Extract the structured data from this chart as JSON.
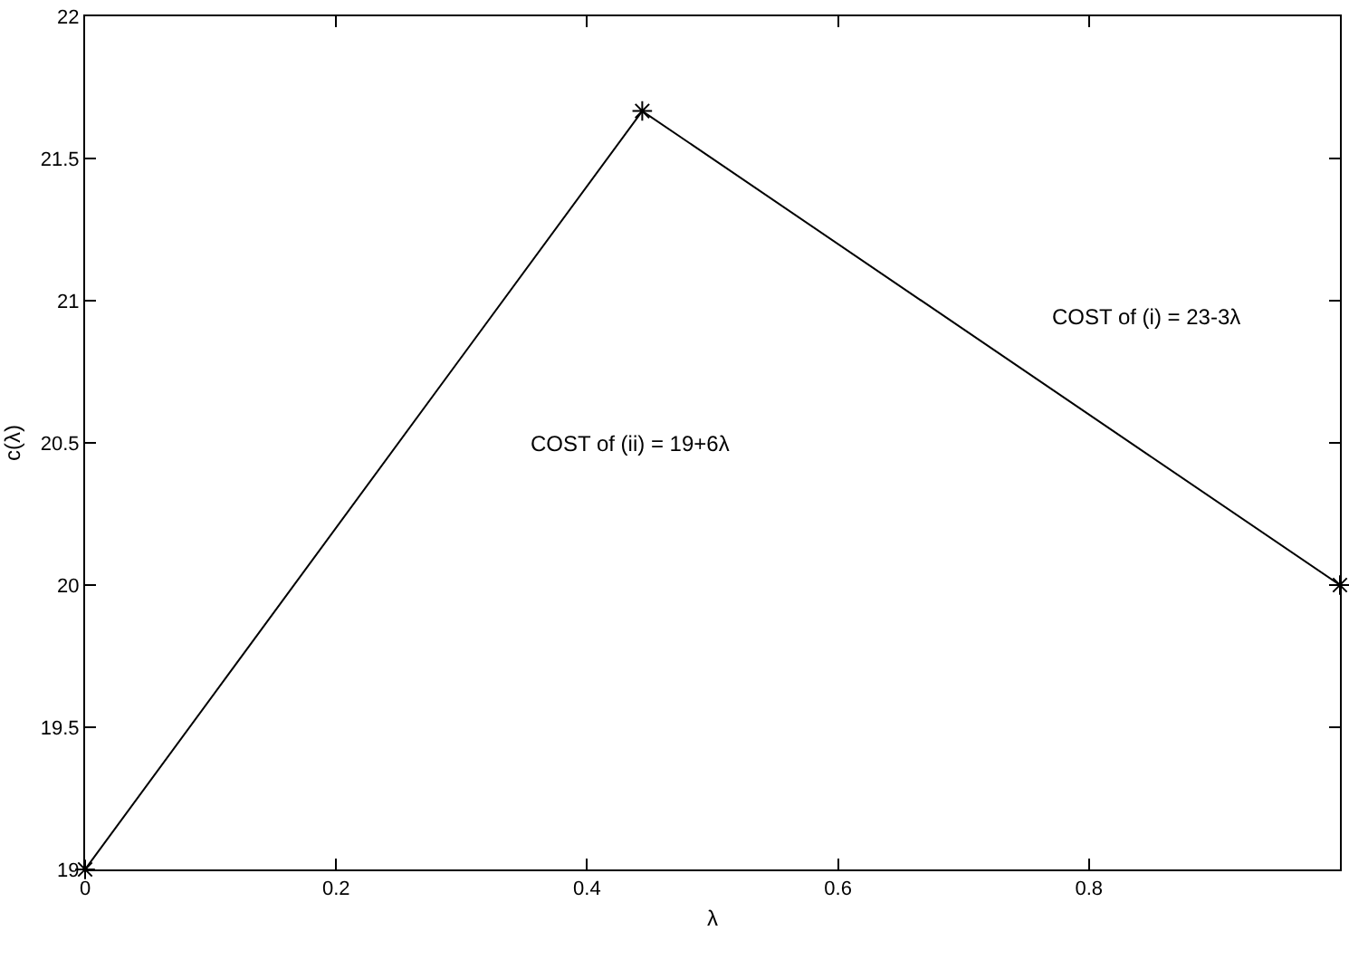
{
  "chart_data": {
    "type": "line",
    "xlabel": "λ",
    "ylabel": "c(λ)",
    "x": [
      0,
      0.444,
      1
    ],
    "series": [
      {
        "color": "#000000",
        "values": [
          19,
          21.667,
          20
        ]
      }
    ],
    "xlim": [
      0,
      1
    ],
    "xticks": [
      0,
      0.2,
      0.4,
      0.6,
      0.8
    ],
    "ylim": [
      19,
      22
    ],
    "yticks": [
      19,
      19.5,
      20,
      20.5,
      21,
      21.5,
      22
    ],
    "marker": "cross",
    "line_style": "solid",
    "annotations": [
      "COST of (ii) = 19+6λ",
      "COST of (i) = 23-3λ"
    ]
  }
}
